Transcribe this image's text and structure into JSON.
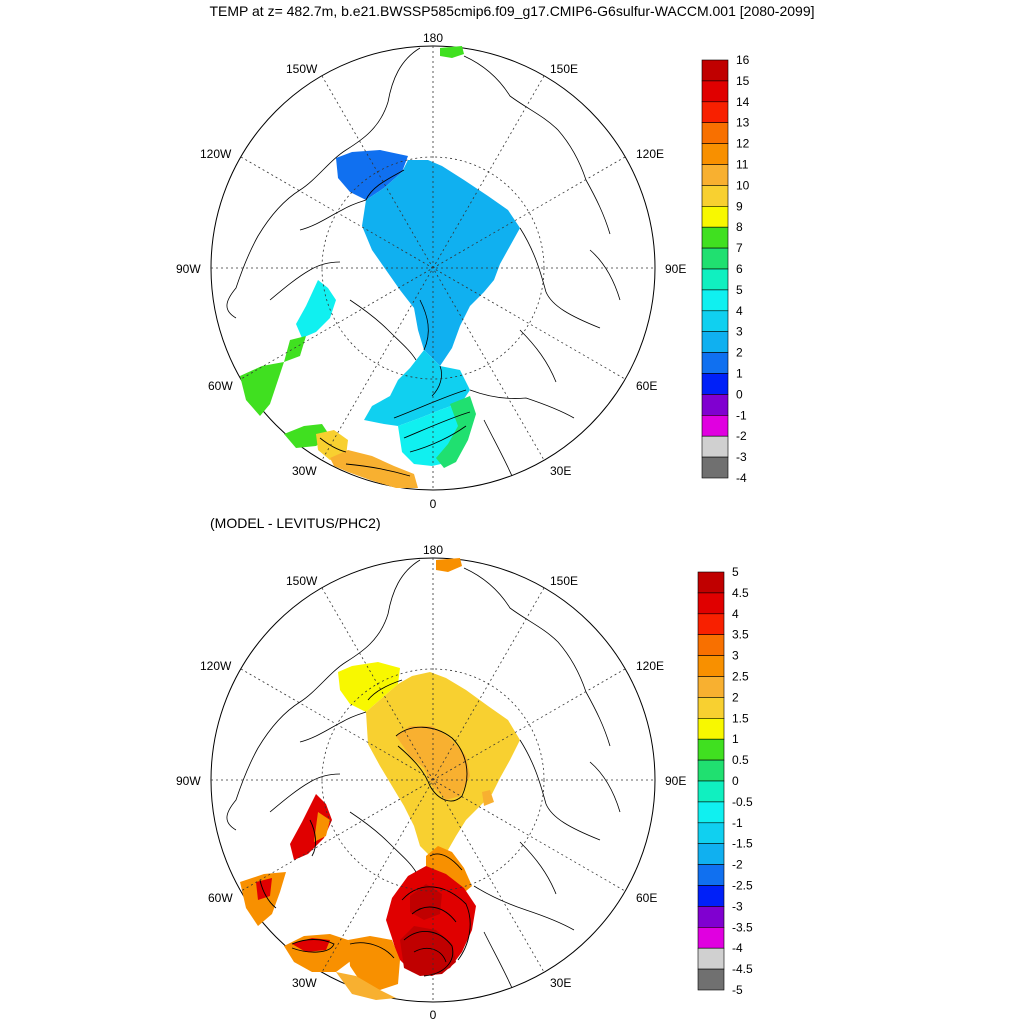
{
  "title": "TEMP at z= 482.7m, b.e21.BWSSP585cmip6.f09_g17.CMIP6-G6sulfur-WACCM.001 [2080-2099]",
  "subtitle": "(MODEL - LEVITUS/PHC2)",
  "lon_labels": {
    "top": "180",
    "bottom": "0",
    "left": "90W",
    "right": "90E",
    "upper_left": "150W",
    "upper_right": "150E",
    "mid_upper_left": "120W",
    "mid_upper_right": "120E",
    "mid_lower_left": "60W",
    "mid_lower_right": "60E",
    "lower_left": "30W",
    "lower_right": "30E"
  },
  "colorbar_top": {
    "labels": [
      "16",
      "15",
      "14",
      "13",
      "12",
      "11",
      "10",
      "9",
      "8",
      "7",
      "6",
      "5",
      "4",
      "3",
      "2",
      "1",
      "0",
      "-1",
      "-2",
      "-3",
      "-4"
    ],
    "colors": [
      "#c00000",
      "#e00000",
      "#f82000",
      "#f87000",
      "#f89000",
      "#f8b030",
      "#f8d030",
      "#f8f800",
      "#40e020",
      "#20e070",
      "#10f0c0",
      "#10f0f0",
      "#10d0f0",
      "#10b0f0",
      "#1070f0",
      "#0020f8",
      "#8000d0",
      "#e000e0",
      "#d0d0d0",
      "#707070"
    ]
  },
  "colorbar_bottom": {
    "labels": [
      "5",
      "4.5",
      "4",
      "3.5",
      "3",
      "2.5",
      "2",
      "1.5",
      "1",
      "0.5",
      "0",
      "-0.5",
      "-1",
      "-1.5",
      "-2",
      "-2.5",
      "-3",
      "-3.5",
      "-4",
      "-4.5",
      "-5"
    ],
    "colors": [
      "#c00000",
      "#e00000",
      "#f82000",
      "#f87000",
      "#f89000",
      "#f8b030",
      "#f8d030",
      "#f8f800",
      "#40e020",
      "#20e070",
      "#10f0c0",
      "#10f0f0",
      "#10d0f0",
      "#10b0f0",
      "#1070f0",
      "#0020f8",
      "#8000d0",
      "#e000e0",
      "#d0d0d0",
      "#707070"
    ]
  },
  "palette": {
    "top_main": "#10b0f0",
    "top_atlantic": "#10d0f0",
    "top_deep_blue": "#1070f0",
    "top_green": "#40e020",
    "top_yellow": "#f8d030",
    "top_orange": "#f8b030",
    "bottom_main": "#f8d030",
    "bottom_yellow": "#f8f800",
    "bottom_orange": "#f89000",
    "bottom_red": "#e00000",
    "bottom_dark_red": "#c00000"
  }
}
